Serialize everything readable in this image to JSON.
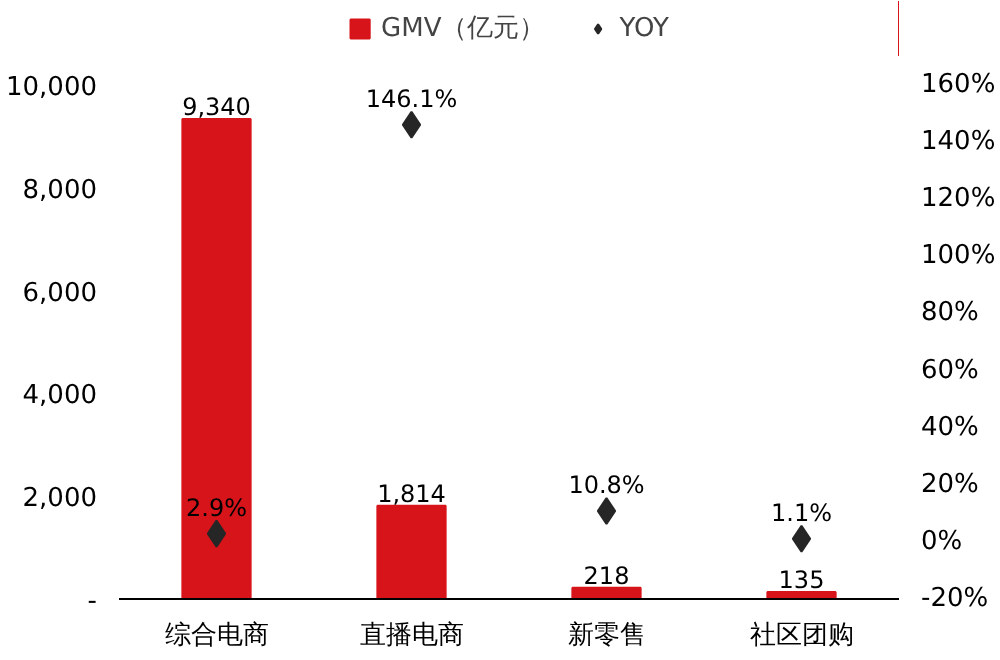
{
  "chart_data": {
    "type": "bar",
    "categories": [
      "综合电商",
      "直播电商",
      "新零售",
      "社区团购"
    ],
    "series": [
      {
        "name": "GMV（亿元）",
        "color": "#d7141a",
        "values": [
          9340,
          1814,
          218,
          135
        ],
        "value_labels": [
          "9,340",
          "1,814",
          "218",
          "135"
        ]
      },
      {
        "name": "YOY",
        "type": "scatter",
        "axis": "y2",
        "marker": "diamond",
        "color": "#262626",
        "values": [
          2.9,
          146.1,
          10.8,
          1.1
        ],
        "value_labels": [
          "2.9%",
          "146.1%",
          "10.8%",
          "1.1%"
        ]
      }
    ],
    "ylim": [
      0,
      10000
    ],
    "yticks": [
      {
        "value": 0,
        "label": "-"
      },
      {
        "value": 2000,
        "label": "2,000"
      },
      {
        "value": 4000,
        "label": "4,000"
      },
      {
        "value": 6000,
        "label": "6,000"
      },
      {
        "value": 8000,
        "label": "8,000"
      },
      {
        "value": 10000,
        "label": "10,000"
      }
    ],
    "y2lim": [
      -20,
      160
    ],
    "y2ticks": [
      {
        "value": -20,
        "label": "-20%"
      },
      {
        "value": 0,
        "label": "0%"
      },
      {
        "value": 20,
        "label": "20%"
      },
      {
        "value": 40,
        "label": "40%"
      },
      {
        "value": 60,
        "label": "60%"
      },
      {
        "value": 80,
        "label": "80%"
      },
      {
        "value": 100,
        "label": "100%"
      },
      {
        "value": 120,
        "label": "120%"
      },
      {
        "value": 140,
        "label": "140%"
      },
      {
        "value": 160,
        "label": "160%"
      }
    ],
    "grid": false,
    "legend": "top"
  }
}
